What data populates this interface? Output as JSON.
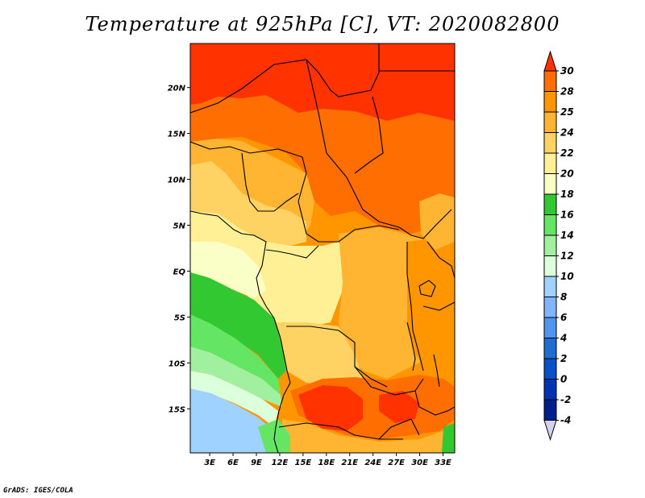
{
  "title": "Temperature at 925hPa [C], VT: 2020082800",
  "credit": "GrADS: IGES/COLA",
  "map": {
    "lon_labels": [
      "3E",
      "6E",
      "9E",
      "12E",
      "15E",
      "18E",
      "21E",
      "24E",
      "27E",
      "30E",
      "33E"
    ],
    "lat_labels": [
      "20N",
      "15N",
      "10N",
      "5N",
      "EQ",
      "5S",
      "10S",
      "15S"
    ],
    "lon_range": [
      0.5,
      34.5
    ],
    "lat_range": [
      -19.8,
      24.8
    ]
  },
  "colorbar": {
    "labels": [
      "30",
      "28",
      "25",
      "24",
      "22",
      "20",
      "18",
      "16",
      "14",
      "12",
      "10",
      "8",
      "6",
      "4",
      "2",
      "0",
      "-2",
      "-4"
    ],
    "colors": [
      "#ff3200",
      "#ff6e00",
      "#ff9600",
      "#ffb432",
      "#ffd264",
      "#fff096",
      "#faffc8",
      "#32c832",
      "#64e664",
      "#a0f0a0",
      "#dcffdc",
      "#a0d2ff",
      "#82b4ff",
      "#5096f0",
      "#1e6ed2",
      "#0a50c8",
      "#0032b4",
      "#001e8c",
      "#d2d2f0"
    ]
  },
  "colors": {
    "border": "#000000",
    "background": "#ffffff"
  }
}
